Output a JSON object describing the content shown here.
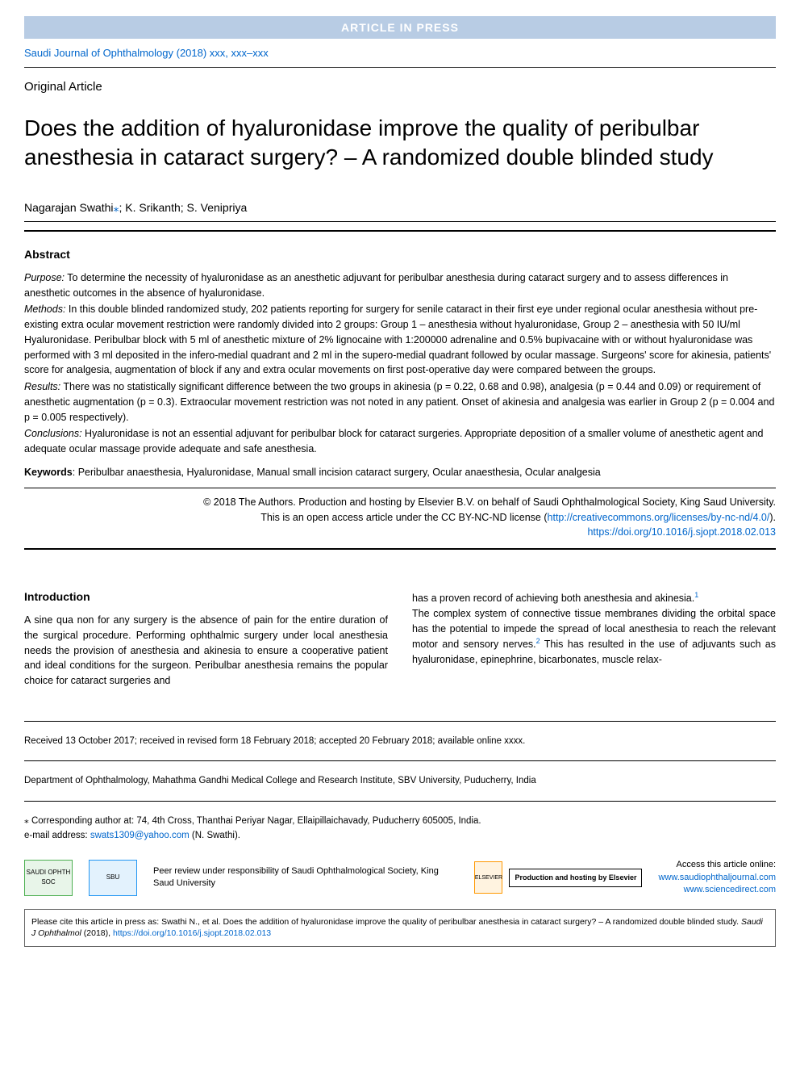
{
  "banner": {
    "text": "ARTICLE IN PRESS",
    "bg_color": "#b8cce4",
    "text_color": "#ffffff"
  },
  "journal_ref": "Saudi Journal of Ophthalmology (2018) xxx, xxx–xxx",
  "article_type": "Original Article",
  "title": "Does the addition of hyaluronidase improve the quality of peribulbar anesthesia in cataract surgery? – A randomized double blinded study",
  "authors": {
    "list": "Nagarajan Swathi",
    "asterisk": "⁎",
    "rest": "; K. Srikanth; S. Venipriya"
  },
  "abstract": {
    "heading": "Abstract",
    "purpose_label": "Purpose:",
    "purpose": " To determine the necessity of hyaluronidase as an anesthetic adjuvant for peribulbar anesthesia during cataract surgery and to assess differences in anesthetic outcomes in the absence of hyaluronidase.",
    "methods_label": "Methods:",
    "methods": " In this double blinded randomized study, 202 patients reporting for surgery for senile cataract in their first eye under regional ocular anesthesia without pre-existing extra ocular movement restriction were randomly divided into 2 groups: Group 1 – anesthesia without hyaluronidase, Group 2 – anesthesia with 50 IU/ml Hyaluronidase. Peribulbar block with 5 ml of anesthetic mixture of 2% lignocaine with 1:200000 adrenaline and 0.5% bupivacaine with or without hyaluronidase was performed with 3 ml deposited in the infero-medial quadrant and 2 ml in the supero-medial quadrant followed by ocular massage. Surgeons' score for akinesia, patients' score for analgesia, augmentation of block if any and extra ocular movements on first post-operative day were compared between the groups.",
    "results_label": "Results:",
    "results": " There was no statistically significant difference between the two groups in akinesia (p = 0.22, 0.68 and 0.98), analgesia (p = 0.44 and 0.09) or requirement of anesthetic augmentation (p = 0.3). Extraocular movement restriction was not noted in any patient. Onset of akinesia and analgesia was earlier in Group 2 (p = 0.004 and p = 0.005 respectively).",
    "conclusions_label": "Conclusions:",
    "conclusions": " Hyaluronidase is not an essential adjuvant for peribulbar block for cataract surgeries. Appropriate deposition of a smaller volume of anesthetic agent and adequate ocular massage provide adequate and safe anesthesia."
  },
  "keywords": {
    "label": "Keywords",
    "text": ": Peribulbar anaesthesia, Hyaluronidase, Manual small incision cataract surgery, Ocular anaesthesia, Ocular analgesia"
  },
  "copyright": {
    "line1": "© 2018 The Authors. Production and hosting by Elsevier B.V. on behalf of Saudi Ophthalmological Society, King Saud University.",
    "line2_prefix": "This is an open access article under the CC BY-NC-ND license (",
    "cc_url": "http://creativecommons.org/licenses/by-nc-nd/4.0/",
    "line2_suffix": ").",
    "doi": "https://doi.org/10.1016/j.sjopt.2018.02.013"
  },
  "introduction": {
    "heading": "Introduction",
    "col1_para1": "A sine qua non for any surgery is the absence of pain for the entire duration of the surgical procedure. Performing ophthalmic surgery under local anesthesia needs the provision of anesthesia and akinesia to ensure a cooperative patient and ideal conditions for the surgeon. Peribulbar anesthesia remains the popular choice for cataract surgeries and",
    "col2_para1": "has a proven record of achieving both anesthesia and akinesia.",
    "ref1": "1",
    "col2_para2": "The complex system of connective tissue membranes dividing the orbital space has the potential to impede the spread of local anesthesia to reach the relevant motor and sensory nerves.",
    "ref2": "2",
    "col2_para2_cont": " This has resulted in the use of adjuvants such as hyaluronidase, epinephrine, bicarbonates, muscle relax-"
  },
  "footer": {
    "received": "Received 13 October 2017; received in revised form 18 February 2018; accepted 20 February 2018; available online xxxx.",
    "affiliation": "Department of Ophthalmology, Mahathma Gandhi Medical College and Research Institute, SBV University, Puducherry, India",
    "corresponding_prefix": "⁎ Corresponding author at: 74, 4th Cross, Thanthai Periyar Nagar, Ellaipillaichavady, Puducherry 605005, India.",
    "email_prefix": "e-mail address: ",
    "email": "swats1309@yahoo.com",
    "email_suffix": " (N. Swathi).",
    "peer_review": "Peer review under responsibility of Saudi Ophthalmological Society, King Saud University",
    "hosting": "Production and hosting by Elsevier",
    "access_label": "Access this article online:",
    "url1": "www.saudiophthaljournal.com",
    "url2": "www.sciencedirect.com"
  },
  "citation": {
    "prefix": "Please cite this article in press as: Swathi N., et al. Does the addition of hyaluronidase improve the quality of peribulbar anesthesia in cataract surgery? – A randomized double blinded study. ",
    "journal": "Saudi J Ophthalmol",
    "year": " (2018), ",
    "doi": "https://doi.org/10.1016/j.sjopt.2018.02.013"
  },
  "logos": {
    "sos": "SAUDI OPHTH SOC",
    "sbu": "SBU",
    "elsevier": "ELSEVIER"
  }
}
